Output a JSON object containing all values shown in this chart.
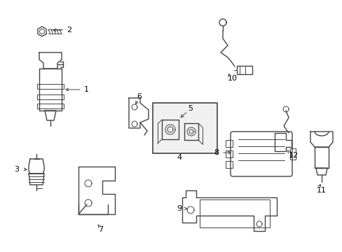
{
  "bg_color": "#ffffff",
  "line_color": "#444444",
  "label_color": "#000000",
  "figsize": [
    4.89,
    3.6
  ],
  "dpi": 100,
  "border_color": "#aaaaaa"
}
